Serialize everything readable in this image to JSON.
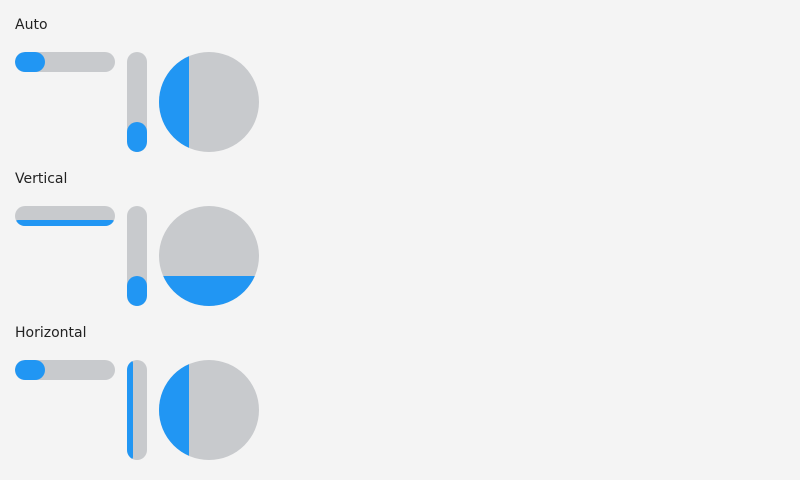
{
  "theme": {
    "track_color": "#c8cacd",
    "fill_color": "#2196f3",
    "background": "#f4f4f4"
  },
  "sections": [
    {
      "label": "Auto",
      "horizontal_slider": {
        "value": 0.3,
        "fill_direction": "horizontal"
      },
      "vertical_slider": {
        "value": 0.3,
        "fill_direction": "vertical"
      },
      "round_slider": {
        "value": 0.3,
        "fill_direction": "horizontal"
      }
    },
    {
      "label": "Vertical",
      "horizontal_slider": {
        "value": 0.3,
        "fill_direction": "vertical"
      },
      "vertical_slider": {
        "value": 0.3,
        "fill_direction": "vertical"
      },
      "round_slider": {
        "value": 0.3,
        "fill_direction": "vertical"
      }
    },
    {
      "label": "Horizontal",
      "horizontal_slider": {
        "value": 0.3,
        "fill_direction": "horizontal"
      },
      "vertical_slider": {
        "value": 0.3,
        "fill_direction": "horizontal"
      },
      "round_slider": {
        "value": 0.3,
        "fill_direction": "horizontal"
      }
    }
  ]
}
